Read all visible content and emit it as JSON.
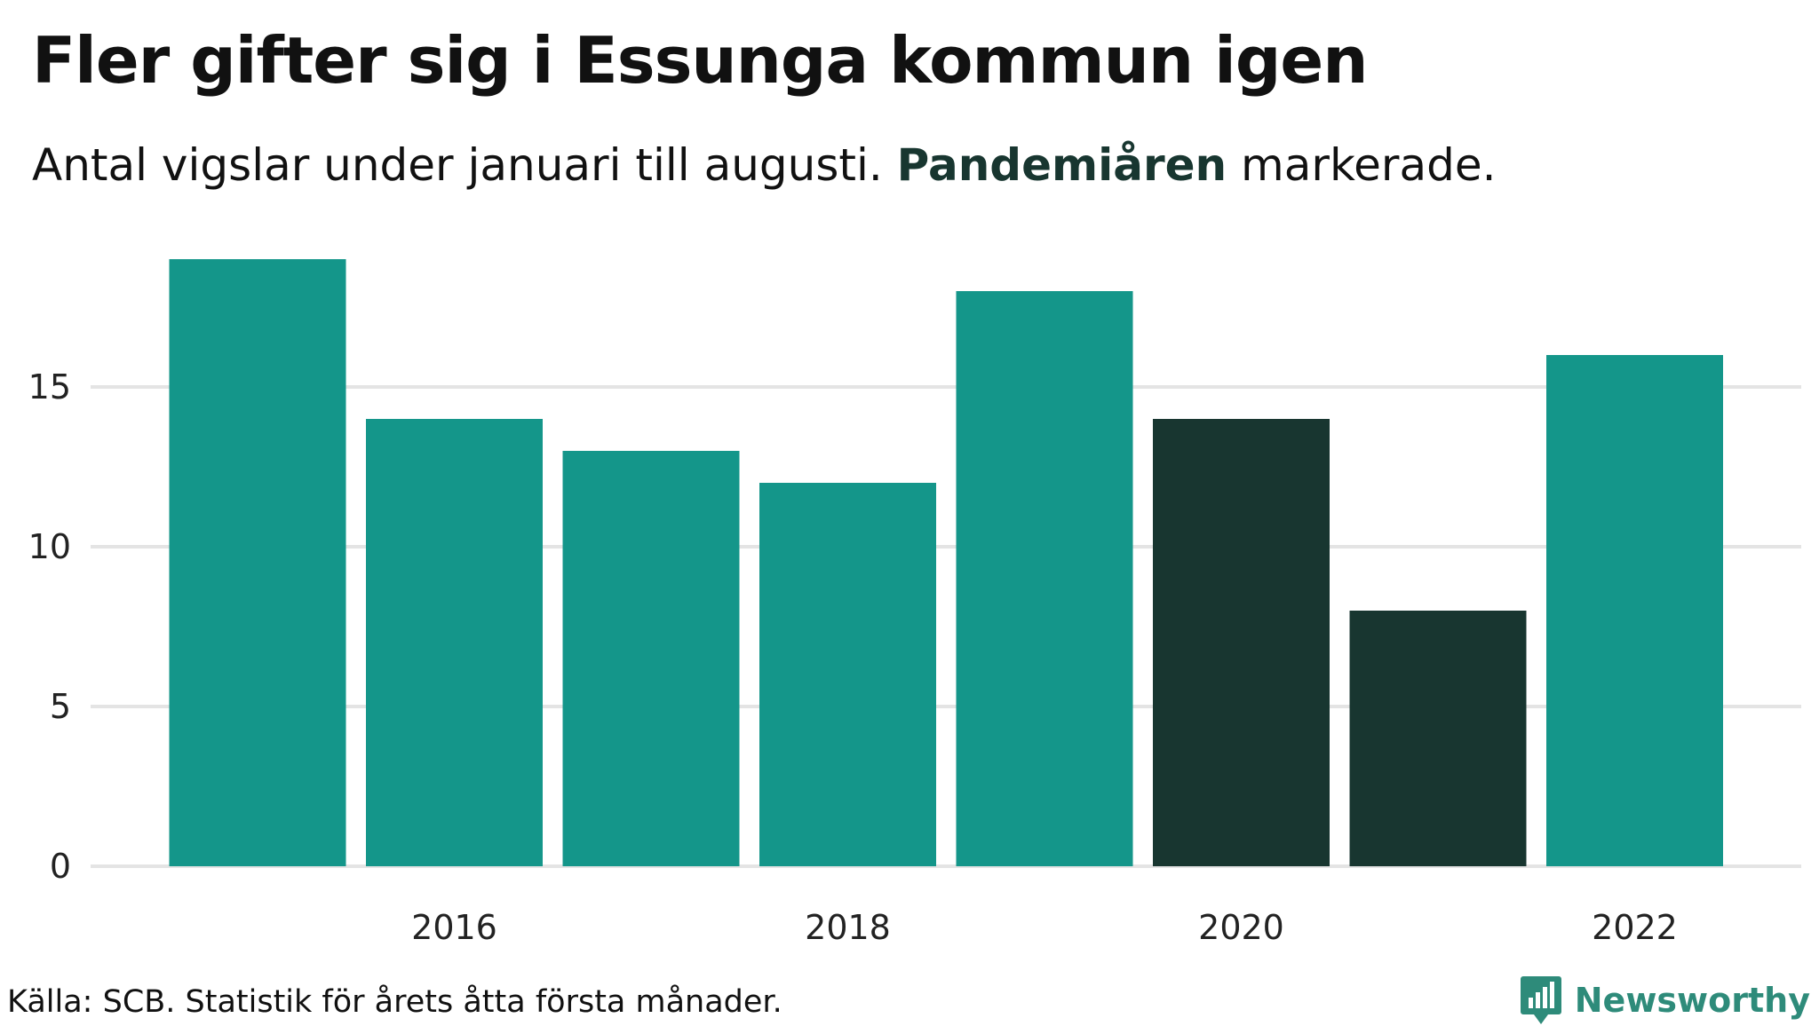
{
  "header": {
    "title": "Fler gifter sig i Essunga kommun igen",
    "subtitle_part1": "Antal vigslar under januari till augusti. ",
    "subtitle_highlight": "Pandemiåren",
    "subtitle_part2": " markerade."
  },
  "footer": {
    "source": "Källa: SCB. Statistik för årets åtta första månader.",
    "brand": "Newsworthy",
    "brand_icon": "bar-chart-badge-icon"
  },
  "colors": {
    "normal": "#14968a",
    "pandemic": "#183630",
    "grid": "#e4e4e4",
    "brand": "#2e8b7a"
  },
  "chart_data": {
    "type": "bar",
    "title": "Fler gifter sig i Essunga kommun igen",
    "subtitle": "Antal vigslar under januari till augusti. Pandemiåren markerade.",
    "xlabel": "",
    "ylabel": "",
    "categories": [
      "2015",
      "2016",
      "2017",
      "2018",
      "2019",
      "2020",
      "2021",
      "2022"
    ],
    "values": [
      19,
      14,
      13,
      12,
      18,
      14,
      8,
      16
    ],
    "pandemic": [
      false,
      false,
      false,
      false,
      false,
      true,
      true,
      false
    ],
    "x_tick_labels": [
      "2016",
      "2018",
      "2020",
      "2022"
    ],
    "y_ticks": [
      0,
      5,
      10,
      15
    ],
    "ylim": [
      0,
      19
    ],
    "grid": true,
    "legend": "none"
  }
}
